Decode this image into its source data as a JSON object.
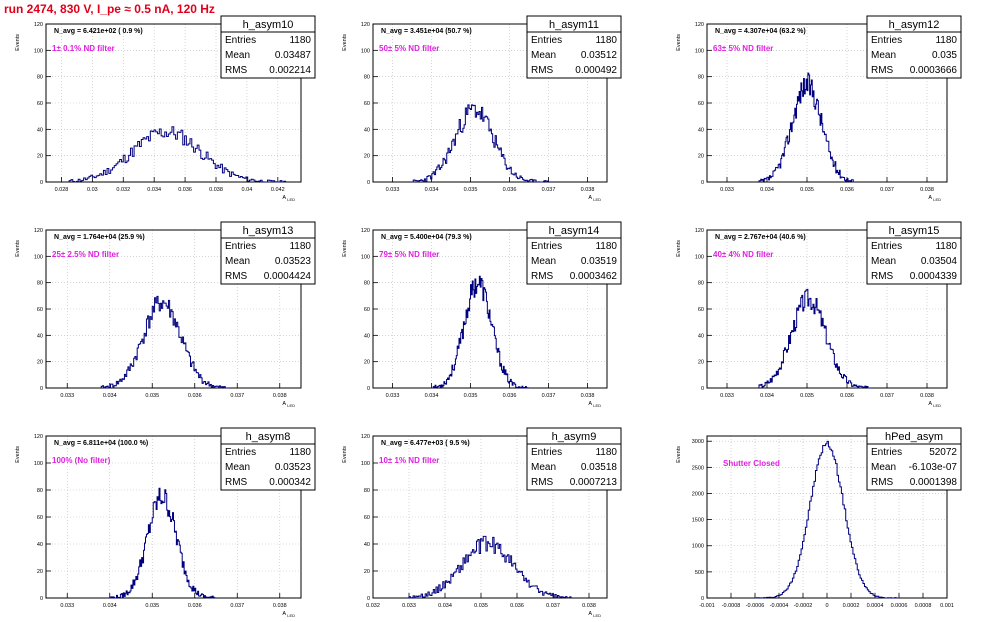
{
  "run_title": "run 2474,   830 V, I_pe ≈ 0.5 nA, 120 Hz",
  "colors": {
    "title": "#e0001a",
    "filter": "#e020e0",
    "hist": "#00007f",
    "grid": "#bbbbbb"
  },
  "chart_data": [
    {
      "type": "bar",
      "name": "h_asym10",
      "ylabel": "Events",
      "xlabel": "A_LED",
      "navg": "N_avg = 6.421e+02  ( 0.9 %)",
      "filter": "1± 0.1% ND filter",
      "entries": "1180",
      "mean": "0.03487",
      "rms": "0.002214",
      "xlim": [
        0.027,
        0.0435
      ],
      "ylim": [
        0,
        120
      ],
      "xticks": [
        0.028,
        0.03,
        0.032,
        0.034,
        0.036,
        0.038,
        0.04,
        0.042
      ],
      "xtick_labels": [
        "0.028",
        "0.03",
        "0.032",
        "0.034",
        "0.036",
        "0.038",
        "0.04",
        "0.042"
      ],
      "yticks": [
        0,
        20,
        40,
        60,
        80,
        100,
        120
      ],
      "ytick_labels": [
        "0",
        "20",
        "40",
        "60",
        "80",
        "100",
        "120"
      ],
      "shape": {
        "kind": "gauss",
        "mu": 0.0348,
        "sigma": 0.0022,
        "peak": 38,
        "xmin": 0.0285,
        "xmax": 0.0425,
        "bins": 120
      },
      "noise": 6,
      "seed": 11
    },
    {
      "type": "bar",
      "name": "h_asym11",
      "ylabel": "Events",
      "xlabel": "A_LED",
      "navg": "N_avg = 3.451e+04  (50.7 %)",
      "filter": "50± 5% ND filter",
      "entries": "1180",
      "mean": "0.03512",
      "rms": "0.000492",
      "xlim": [
        0.0325,
        0.0385
      ],
      "ylim": [
        0,
        120
      ],
      "xticks": [
        0.033,
        0.034,
        0.035,
        0.036,
        0.037,
        0.038
      ],
      "xtick_labels": [
        "0.033",
        "0.034",
        "0.035",
        "0.036",
        "0.037",
        "0.038"
      ],
      "yticks": [
        0,
        20,
        40,
        60,
        80,
        100,
        120
      ],
      "ytick_labels": [
        "0",
        "20",
        "40",
        "60",
        "80",
        "100",
        "120"
      ],
      "shape": {
        "kind": "gauss",
        "mu": 0.0351,
        "sigma": 0.00049,
        "peak": 55,
        "xmin": 0.0335,
        "xmax": 0.037,
        "bins": 110
      },
      "noise": 8,
      "seed": 23
    },
    {
      "type": "bar",
      "name": "h_asym12",
      "ylabel": "Events",
      "xlabel": "A_LED",
      "navg": "N_avg = 4.307e+04  (63.2 %)",
      "filter": "63± 5% ND filter",
      "entries": "1180",
      "mean": "0.035",
      "rms": "0.0003666",
      "xlim": [
        0.0325,
        0.0385
      ],
      "ylim": [
        0,
        120
      ],
      "xticks": [
        0.033,
        0.034,
        0.035,
        0.036,
        0.037,
        0.038
      ],
      "xtick_labels": [
        "0.033",
        "0.034",
        "0.035",
        "0.036",
        "0.037",
        "0.038"
      ],
      "yticks": [
        0,
        20,
        40,
        60,
        80,
        100,
        120
      ],
      "ytick_labels": [
        "0",
        "20",
        "40",
        "60",
        "80",
        "100",
        "120"
      ],
      "shape": {
        "kind": "gauss",
        "mu": 0.035,
        "sigma": 0.00037,
        "peak": 74,
        "xmin": 0.0338,
        "xmax": 0.0362,
        "bins": 110
      },
      "noise": 9,
      "seed": 37
    },
    {
      "type": "bar",
      "name": "h_asym13",
      "ylabel": "Events",
      "xlabel": "A_LED",
      "navg": "N_avg = 1.764e+04  (25.9 %)",
      "filter": "25± 2.5% ND filter",
      "entries": "1180",
      "mean": "0.03523",
      "rms": "0.0004424",
      "xlim": [
        0.0325,
        0.0385
      ],
      "ylim": [
        0,
        120
      ],
      "xticks": [
        0.033,
        0.034,
        0.035,
        0.036,
        0.037,
        0.038
      ],
      "xtick_labels": [
        "0.033",
        "0.034",
        "0.035",
        "0.036",
        "0.037",
        "0.038"
      ],
      "yticks": [
        0,
        20,
        40,
        60,
        80,
        100,
        120
      ],
      "ytick_labels": [
        "0",
        "20",
        "40",
        "60",
        "80",
        "100",
        "120"
      ],
      "shape": {
        "kind": "gauss",
        "mu": 0.03523,
        "sigma": 0.00044,
        "peak": 65,
        "xmin": 0.0338,
        "xmax": 0.0368,
        "bins": 110
      },
      "noise": 8,
      "seed": 41
    },
    {
      "type": "bar",
      "name": "h_asym14",
      "ylabel": "Events",
      "xlabel": "A_LED",
      "navg": "N_avg = 5.400e+04  (79.3 %)",
      "filter": "79± 5% ND filter",
      "entries": "1180",
      "mean": "0.03519",
      "rms": "0.0003462",
      "xlim": [
        0.0325,
        0.0385
      ],
      "ylim": [
        0,
        120
      ],
      "xticks": [
        0.033,
        0.034,
        0.035,
        0.036,
        0.037,
        0.038
      ],
      "xtick_labels": [
        "0.033",
        "0.034",
        "0.035",
        "0.036",
        "0.037",
        "0.038"
      ],
      "yticks": [
        0,
        20,
        40,
        60,
        80,
        100,
        120
      ],
      "ytick_labels": [
        "0",
        "20",
        "40",
        "60",
        "80",
        "100",
        "120"
      ],
      "shape": {
        "kind": "gauss",
        "mu": 0.03519,
        "sigma": 0.00035,
        "peak": 80,
        "xmin": 0.034,
        "xmax": 0.0365,
        "bins": 110
      },
      "noise": 9,
      "seed": 53
    },
    {
      "type": "bar",
      "name": "h_asym15",
      "ylabel": "Events",
      "xlabel": "A_LED",
      "navg": "N_avg = 2.767e+04  (40.6 %)",
      "filter": "40± 4% ND filter",
      "entries": "1180",
      "mean": "0.03504",
      "rms": "0.0004339",
      "xlim": [
        0.0325,
        0.0385
      ],
      "ylim": [
        0,
        120
      ],
      "xticks": [
        0.033,
        0.034,
        0.035,
        0.036,
        0.037,
        0.038
      ],
      "xtick_labels": [
        "0.033",
        "0.034",
        "0.035",
        "0.036",
        "0.037",
        "0.038"
      ],
      "yticks": [
        0,
        20,
        40,
        60,
        80,
        100,
        120
      ],
      "ytick_labels": [
        "0",
        "20",
        "40",
        "60",
        "80",
        "100",
        "120"
      ],
      "shape": {
        "kind": "gauss",
        "mu": 0.03504,
        "sigma": 0.00043,
        "peak": 68,
        "xmin": 0.0338,
        "xmax": 0.0366,
        "bins": 110
      },
      "noise": 8,
      "seed": 67
    },
    {
      "type": "bar",
      "name": "h_asym8",
      "ylabel": "Events",
      "xlabel": "A_LED",
      "navg": "N_avg = 6.811e+04 (100.0 %)",
      "filter": "100% (No filter)",
      "entries": "1180",
      "mean": "0.03523",
      "rms": "0.000342",
      "xlim": [
        0.0325,
        0.0385
      ],
      "ylim": [
        0,
        120
      ],
      "xticks": [
        0.033,
        0.034,
        0.035,
        0.036,
        0.037,
        0.038
      ],
      "xtick_labels": [
        "0.033",
        "0.034",
        "0.035",
        "0.036",
        "0.037",
        "0.038"
      ],
      "yticks": [
        0,
        20,
        40,
        60,
        80,
        100,
        120
      ],
      "ytick_labels": [
        "0",
        "20",
        "40",
        "60",
        "80",
        "100",
        "120"
      ],
      "shape": {
        "kind": "gauss",
        "mu": 0.03523,
        "sigma": 0.00034,
        "peak": 75,
        "xmin": 0.034,
        "xmax": 0.0365,
        "bins": 110
      },
      "noise": 9,
      "seed": 79
    },
    {
      "type": "bar",
      "name": "h_asym9",
      "ylabel": "Events",
      "xlabel": "A_LED",
      "navg": "N_avg = 6.477e+03  ( 9.5 %)",
      "filter": "10± 1% ND filter",
      "entries": "1180",
      "mean": "0.03518",
      "rms": "0.0007213",
      "xlim": [
        0.032,
        0.0385
      ],
      "ylim": [
        0,
        120
      ],
      "xticks": [
        0.032,
        0.033,
        0.034,
        0.035,
        0.036,
        0.037,
        0.038
      ],
      "xtick_labels": [
        "0.032",
        "0.033",
        "0.034",
        "0.035",
        "0.036",
        "0.037",
        "0.038"
      ],
      "yticks": [
        0,
        20,
        40,
        60,
        80,
        100,
        120
      ],
      "ytick_labels": [
        "0",
        "20",
        "40",
        "60",
        "80",
        "100",
        "120"
      ],
      "shape": {
        "kind": "gauss",
        "mu": 0.03518,
        "sigma": 0.00072,
        "peak": 40,
        "xmin": 0.033,
        "xmax": 0.0375,
        "bins": 120
      },
      "noise": 6,
      "seed": 89
    },
    {
      "type": "bar",
      "name": "hPed_asym",
      "ylabel": "Events",
      "xlabel": "",
      "navg": "",
      "filter": "Shutter Closed",
      "entries": "52072",
      "mean": "-6.103e-07",
      "rms": "0.0001398",
      "xlim": [
        -0.001,
        0.001
      ],
      "ylim": [
        0,
        3100
      ],
      "xticks": [
        -0.001,
        -0.0008,
        -0.0006,
        -0.0004,
        -0.0002,
        0,
        0.0002,
        0.0004,
        0.0006,
        0.0008,
        0.001
      ],
      "xtick_labels": [
        "-0.001",
        "-0.0008",
        "-0.0006",
        "-0.0004",
        "-0.0002",
        "0",
        "0.0002",
        "0.0004",
        "0.0006",
        "0.0008",
        "0.001"
      ],
      "yticks": [
        0,
        500,
        1000,
        1500,
        2000,
        2500,
        3000
      ],
      "ytick_labels": [
        "0",
        "500",
        "1000",
        "1500",
        "2000",
        "2500",
        "3000"
      ],
      "shape": {
        "kind": "gauss",
        "mu": 0.0,
        "sigma": 0.00014,
        "peak": 2950,
        "xmin": -0.0006,
        "xmax": 0.0006,
        "bins": 100
      },
      "noise": 60,
      "seed": 97
    }
  ]
}
